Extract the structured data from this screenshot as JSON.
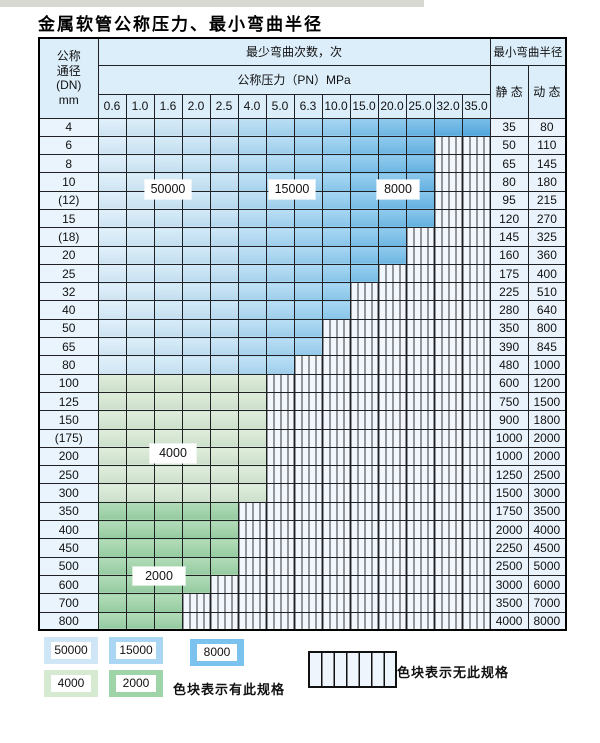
{
  "page": {
    "title": "金属软管公称压力、最小弯曲半径"
  },
  "table": {
    "dn_header_lines": [
      "公称",
      "通径",
      "(DN)",
      "mm"
    ],
    "bend_times_header": "最少弯曲次数，次",
    "pressure_header": "公称压力（PN）MPa",
    "radius_header": "最小弯曲半径",
    "static_header": "静 态",
    "dynamic_header": "动 态",
    "pressure_ticks": [
      "0.6",
      "1.0",
      "1.6",
      "2.0",
      "2.5",
      "4.0",
      "5.0",
      "6.3",
      "10.0",
      "15.0",
      "20.0",
      "25.0",
      "32.0",
      "35.0"
    ],
    "rows": [
      {
        "dn": "4",
        "colored": 14,
        "colored_through": "35.0",
        "band": "blue",
        "static": "35",
        "dynamic": "80"
      },
      {
        "dn": "6",
        "colored": 12,
        "colored_through": "25.0",
        "band": "blue",
        "static": "50",
        "dynamic": "110"
      },
      {
        "dn": "8",
        "colored": 12,
        "colored_through": "25.0",
        "band": "blue",
        "static": "65",
        "dynamic": "145"
      },
      {
        "dn": "10",
        "colored": 12,
        "colored_through": "25.0",
        "band": "blue",
        "static": "80",
        "dynamic": "180"
      },
      {
        "dn": "(12)",
        "colored": 12,
        "colored_through": "25.0",
        "band": "blue",
        "static": "95",
        "dynamic": "215"
      },
      {
        "dn": "15",
        "colored": 12,
        "colored_through": "25.0",
        "band": "blue",
        "static": "120",
        "dynamic": "270"
      },
      {
        "dn": "(18)",
        "colored": 11,
        "colored_through": "20.0",
        "band": "blue",
        "static": "145",
        "dynamic": "325"
      },
      {
        "dn": "20",
        "colored": 11,
        "colored_through": "20.0",
        "band": "blue",
        "static": "160",
        "dynamic": "360"
      },
      {
        "dn": "25",
        "colored": 10,
        "colored_through": "15.0",
        "band": "blue",
        "static": "175",
        "dynamic": "400"
      },
      {
        "dn": "32",
        "colored": 9,
        "colored_through": "10.0",
        "band": "blue",
        "static": "225",
        "dynamic": "510"
      },
      {
        "dn": "40",
        "colored": 9,
        "colored_through": "10.0",
        "band": "blue",
        "static": "280",
        "dynamic": "640"
      },
      {
        "dn": "50",
        "colored": 8,
        "colored_through": "6.3",
        "band": "blue",
        "static": "350",
        "dynamic": "800"
      },
      {
        "dn": "65",
        "colored": 8,
        "colored_through": "6.3",
        "band": "blue",
        "static": "390",
        "dynamic": "845"
      },
      {
        "dn": "80",
        "colored": 7,
        "colored_through": "5.0",
        "band": "blue",
        "static": "480",
        "dynamic": "1000"
      },
      {
        "dn": "100",
        "colored": 6,
        "colored_through": "4.0",
        "band": "green4000",
        "static": "600",
        "dynamic": "1200"
      },
      {
        "dn": "125",
        "colored": 6,
        "colored_through": "4.0",
        "band": "green4000",
        "static": "750",
        "dynamic": "1500"
      },
      {
        "dn": "150",
        "colored": 6,
        "colored_through": "4.0",
        "band": "green4000",
        "static": "900",
        "dynamic": "1800"
      },
      {
        "dn": "(175)",
        "colored": 6,
        "colored_through": "4.0",
        "band": "green4000",
        "static": "1000",
        "dynamic": "2000"
      },
      {
        "dn": "200",
        "colored": 6,
        "colored_through": "4.0",
        "band": "green4000",
        "static": "1000",
        "dynamic": "2000"
      },
      {
        "dn": "250",
        "colored": 6,
        "colored_through": "4.0",
        "band": "green4000",
        "static": "1250",
        "dynamic": "2500"
      },
      {
        "dn": "300",
        "colored": 6,
        "colored_through": "4.0",
        "band": "green4000",
        "static": "1500",
        "dynamic": "3000"
      },
      {
        "dn": "350",
        "colored": 5,
        "colored_through": "2.5",
        "band": "green2000",
        "static": "1750",
        "dynamic": "3500"
      },
      {
        "dn": "400",
        "colored": 5,
        "colored_through": "2.5",
        "band": "green2000",
        "static": "2000",
        "dynamic": "4000"
      },
      {
        "dn": "450",
        "colored": 5,
        "colored_through": "2.5",
        "band": "green2000",
        "static": "2250",
        "dynamic": "4500"
      },
      {
        "dn": "500",
        "colored": 5,
        "colored_through": "2.5",
        "band": "green2000",
        "static": "2500",
        "dynamic": "5000"
      },
      {
        "dn": "600",
        "colored": 4,
        "colored_through": "2.0",
        "band": "green2000",
        "static": "3000",
        "dynamic": "6000"
      },
      {
        "dn": "700",
        "colored": 3,
        "colored_through": "1.6",
        "band": "green2000",
        "static": "3500",
        "dynamic": "7000"
      },
      {
        "dn": "800",
        "colored": 3,
        "colored_through": "1.6",
        "band": "green2000",
        "static": "4000",
        "dynamic": "8000"
      }
    ]
  },
  "zone_labels": {
    "z50000": "50000",
    "z15000": "15000",
    "z8000": "8000",
    "z4000": "4000",
    "z2000": "2000"
  },
  "legend": {
    "items": [
      {
        "label": "50000",
        "color_key": "legend_50000"
      },
      {
        "label": "15000",
        "color_key": "legend_15000"
      },
      {
        "label": "8000",
        "color_key": "legend_8000"
      },
      {
        "label": "4000",
        "color_key": "legend_4000"
      },
      {
        "label": "2000",
        "color_key": "legend_2000"
      }
    ],
    "has_spec_text": "色块表示有此规格",
    "no_spec_text": "色块表示无此规格"
  },
  "colors": {
    "blue_cols": [
      "#d9edfa",
      "#d3eaf8",
      "#cde7f7",
      "#c6e4f6",
      "#bfe0f5",
      "#b0daf4",
      "#a6d6f3",
      "#9bd1f1",
      "#8fccf0",
      "#7dc3ec",
      "#73bde9",
      "#69b7e7",
      "#5fb1e4",
      "#56ace2"
    ],
    "green_4000": "#d7e9d2",
    "green_2000": "#9dd3a5",
    "legend_50000": "#cfe6f7",
    "legend_15000": "#a9d6f3",
    "legend_8000": "#7cc2ee",
    "legend_4000": "#d6e9d1",
    "legend_2000": "#9ed4a7",
    "header_bg": "#dceefa",
    "no_spec_bg": "#f2f7fd"
  }
}
